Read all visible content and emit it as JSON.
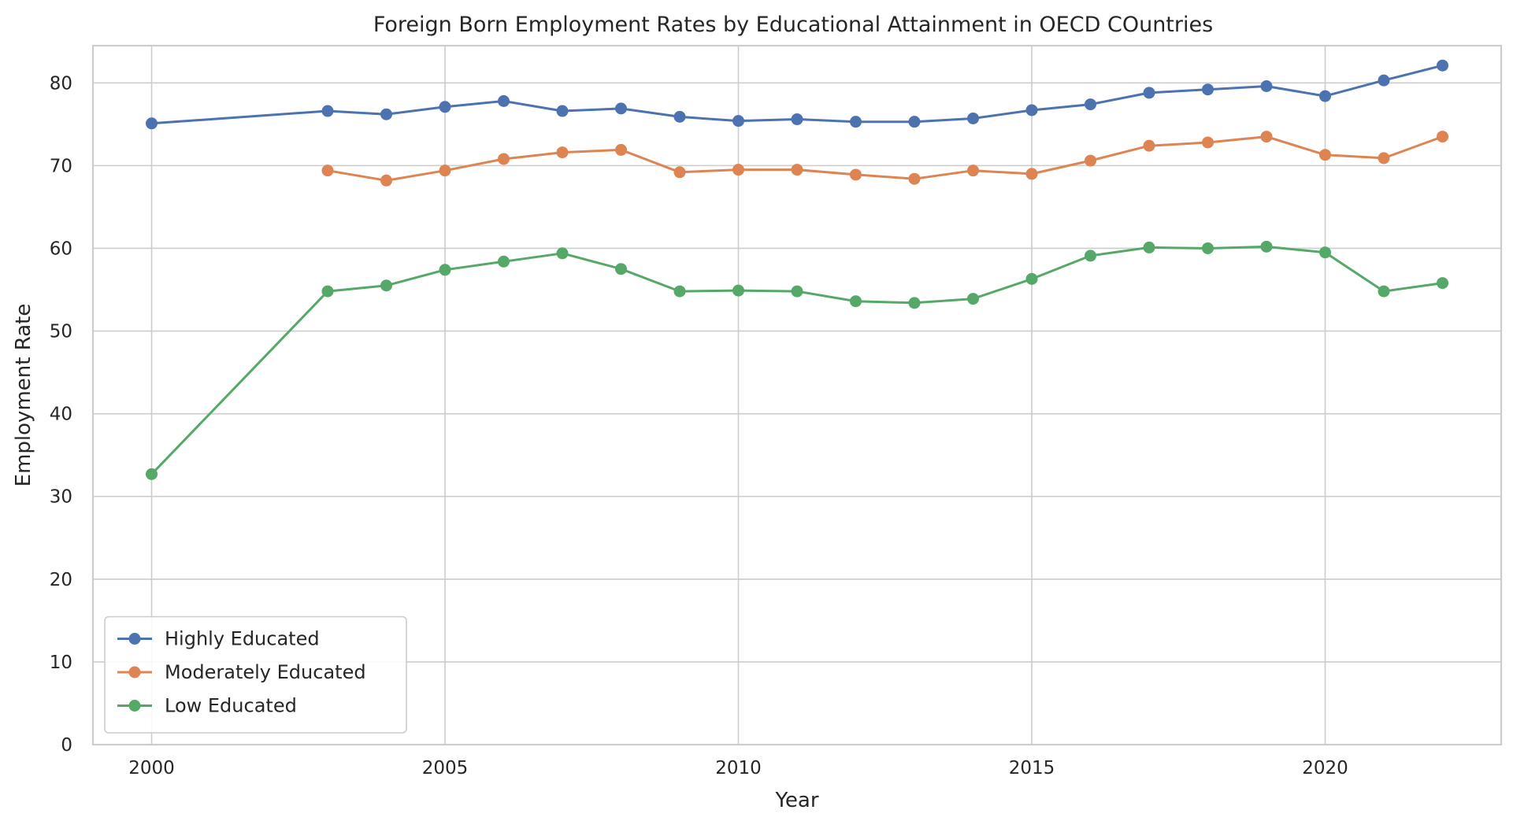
{
  "chart_data": {
    "type": "line",
    "title": "Foreign Born Employment Rates by Educational Attainment in OECD COuntries",
    "xlabel": "Year",
    "ylabel": "Employment Rate",
    "xlim": [
      1999,
      2023
    ],
    "ylim": [
      0,
      84.5
    ],
    "xticks": [
      2000,
      2005,
      2010,
      2015,
      2020
    ],
    "yticks": [
      0,
      10,
      20,
      30,
      40,
      50,
      60,
      70,
      80
    ],
    "grid": true,
    "legend_position": "lower-left",
    "series": [
      {
        "name": "Highly Educated",
        "color": "#4c72b0",
        "x": [
          2000,
          2003,
          2004,
          2005,
          2006,
          2007,
          2008,
          2009,
          2010,
          2011,
          2012,
          2013,
          2014,
          2015,
          2016,
          2017,
          2018,
          2019,
          2020,
          2021,
          2022
        ],
        "y": [
          75.1,
          76.6,
          76.2,
          77.1,
          77.8,
          76.6,
          76.9,
          75.9,
          75.4,
          75.6,
          75.3,
          75.3,
          75.7,
          76.7,
          77.4,
          78.8,
          79.2,
          79.6,
          78.4,
          80.3,
          82.1
        ]
      },
      {
        "name": "Moderately Educated",
        "color": "#dd8452",
        "x": [
          2003,
          2004,
          2005,
          2006,
          2007,
          2008,
          2009,
          2010,
          2011,
          2012,
          2013,
          2014,
          2015,
          2016,
          2017,
          2018,
          2019,
          2020,
          2021,
          2022
        ],
        "y": [
          69.4,
          68.2,
          69.4,
          70.8,
          71.6,
          71.9,
          69.2,
          69.5,
          69.5,
          68.9,
          68.4,
          69.4,
          69.0,
          70.6,
          72.4,
          72.8,
          73.5,
          71.3,
          70.9,
          73.5
        ]
      },
      {
        "name": "Low Educated",
        "color": "#55a868",
        "x": [
          2000,
          2003,
          2004,
          2005,
          2006,
          2007,
          2008,
          2009,
          2010,
          2011,
          2012,
          2013,
          2014,
          2015,
          2016,
          2017,
          2018,
          2019,
          2020,
          2021,
          2022
        ],
        "y": [
          32.7,
          54.8,
          55.5,
          57.4,
          58.4,
          59.4,
          57.5,
          54.8,
          54.9,
          54.8,
          53.6,
          53.4,
          53.9,
          56.3,
          59.1,
          60.1,
          60.0,
          60.2,
          59.5,
          54.8,
          55.8
        ]
      }
    ]
  }
}
